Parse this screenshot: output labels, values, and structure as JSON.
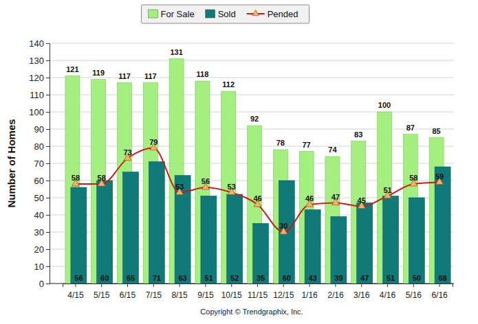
{
  "chart_data": {
    "type": "bar",
    "ylabel": "Number of Homes",
    "annotations": [
      "Copyright © Trendgraphix, Inc."
    ],
    "categories": [
      "4/15",
      "5/15",
      "6/15",
      "7/15",
      "8/15",
      "9/15",
      "10/15",
      "11/15",
      "12/15",
      "1/16",
      "2/16",
      "3/16",
      "4/16",
      "5/16",
      "6/16"
    ],
    "series": [
      {
        "name": "For Sale",
        "type": "bar",
        "color": "#a3f07f",
        "values": [
          121,
          119,
          117,
          117,
          131,
          118,
          112,
          92,
          78,
          77,
          74,
          83,
          100,
          87,
          85
        ]
      },
      {
        "name": "Sold",
        "type": "bar",
        "color": "#0f7a78",
        "values": [
          56,
          60,
          65,
          71,
          63,
          51,
          52,
          35,
          60,
          43,
          39,
          47,
          51,
          50,
          68
        ]
      },
      {
        "name": "Pended",
        "type": "line",
        "color": "#cc1a1a",
        "marker": "triangle",
        "values": [
          58,
          58,
          73,
          79,
          53,
          56,
          53,
          46,
          30,
          46,
          47,
          45,
          51,
          58,
          59
        ]
      }
    ],
    "ylim": [
      0,
      140
    ],
    "yticks": [
      0,
      10,
      20,
      30,
      40,
      50,
      60,
      70,
      80,
      90,
      100,
      110,
      120,
      130,
      140
    ],
    "grid": true,
    "data_labels": true,
    "legend": "top"
  }
}
